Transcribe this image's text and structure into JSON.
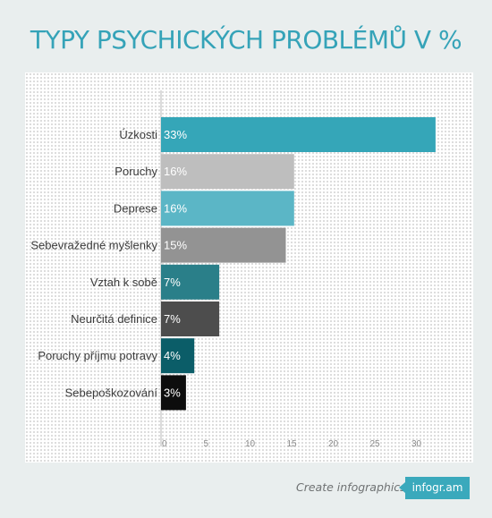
{
  "page": {
    "title": "TYPY PSYCHICKÝCH PROBLÉMŮ V %",
    "footer_text": "Create infographics",
    "footer_brand": "infogr.am"
  },
  "chart_data": {
    "type": "bar",
    "orientation": "horizontal",
    "title": "TYPY PSYCHICKÝCH PROBLÉMŮ V %",
    "categories": [
      "Úzkosti",
      "Poruchy",
      "Deprese",
      "Sebevražedné myšlenky",
      "Vztah k sobě",
      "Neurčitá definice",
      "Poruchy příjmu potravy",
      "Sebepoškozování"
    ],
    "values": [
      33,
      16,
      16,
      15,
      7,
      7,
      4,
      3
    ],
    "value_labels": [
      "33%",
      "16%",
      "16%",
      "15%",
      "7%",
      "7%",
      "4%",
      "3%"
    ],
    "colors": [
      "#35a6b8",
      "#bebebe",
      "#5bb6c6",
      "#939393",
      "#2a7f89",
      "#4d4d4d",
      "#0b5d68",
      "#0d0d0d"
    ],
    "x_ticks": [
      "0",
      "5",
      "10",
      "15",
      "20",
      "25",
      "30"
    ],
    "xlim": [
      0,
      33
    ],
    "grid": false,
    "legend": "none"
  }
}
